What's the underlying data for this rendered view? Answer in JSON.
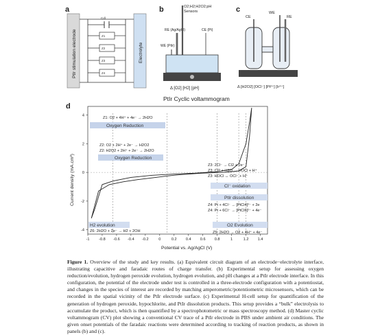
{
  "figure": {
    "panel_a": {
      "letter": "a",
      "electrode_label": "PtIr stimulation electrode",
      "electrolyte_label": "Electrolyte",
      "cdl_label": "Cdl",
      "z_labels": [
        "Z1",
        "Z2",
        "Z3",
        "Z4"
      ]
    },
    "panel_b": {
      "letter": "b",
      "sensors_label": "O2;H2;H2O2;pH",
      "sensors_label_2": "Sensors",
      "re_label": "RE (Ag/AgCl)",
      "ce_label": "CE (Pt)",
      "we_label": "WE (PtIr)",
      "bottom_label": "Δ [O2] [H2] [pH]"
    },
    "panel_c": {
      "letter": "c",
      "ce_label": "CE",
      "we_label": "WE",
      "re_label": "RE",
      "bottom_label": "Δ [H2O2] [OCl⁻] [Pt²⁺] [Ir⁴⁺]"
    },
    "panel_d": {
      "letter": "d",
      "title": "PtIr Cyclic voltammogram",
      "regions": {
        "oxygen_reduction_1": "Oxygen Reduction",
        "oxygen_reduction_2": "Oxygen Reduction",
        "cl_oxidation": "Cl⁻ oxidation",
        "ptir_dissolution": "PtIr dissolution",
        "o2_evolution": "O2 Evolution",
        "h2_evolution": "H2 evolution"
      },
      "reactions": {
        "z1": "Z1: O2 + 4H⁺ + 4e⁻ → 2H2O",
        "z2a": "Z2: O2 + 2H⁺ + 2e⁻ → H2O2",
        "z2b": "Z2: H2O2 + 2H⁺ + 2e⁻ → 2H2O",
        "z3a": "Z3: 2Cl⁻ → Cl2 + 2e⁻",
        "z3b": "Z3: Cl2 + H2O → HOCl + H⁺",
        "z3c": "Z3: HOCl ↔ OCl⁻ + H⁺",
        "z4a": "Z4: Pt + 4Cl⁻ → [PtCl4]²⁻ + 2e",
        "z4b": "Z4: Pt + 6Cl⁻ → [PtCl6]²⁻ + 4e⁻",
        "z5": "Z5: 2H2O → O2 + 4H⁺ + 4e⁻",
        "z6": "Z6: 2H2O + 2e⁻ → H2 + 2OH"
      }
    }
  },
  "chart_data": {
    "type": "line",
    "title": "PtIr Cyclic voltammogram",
    "xlabel": "Potential vs. Ag/AgCl (V)",
    "ylabel": "Current density (mA.cm²)",
    "xlim": [
      -1,
      1.5
    ],
    "ylim": [
      -4.3,
      4.6
    ],
    "x_ticks": [
      "-1",
      "-0.8",
      "-0.6",
      "-0.4",
      "-0.2",
      "0",
      "0.2",
      "0.4",
      "0.6",
      "0.8",
      "1",
      "1.2",
      "1.4"
    ],
    "y_ticks": [
      "4",
      "2",
      "0",
      "-2",
      "-4"
    ],
    "x_tick_values": [
      -1,
      -0.8,
      -0.6,
      -0.4,
      -0.2,
      0,
      0.2,
      0.4,
      0.6,
      0.8,
      1,
      1.2,
      1.4
    ],
    "y_tick_values": [
      4,
      2,
      0,
      -2,
      -4
    ],
    "onset_lines_x": [
      -0.65,
      0.1,
      0.8,
      1.1,
      1.2
    ],
    "series": [
      {
        "values_forward": [
          [
            -0.95,
            -3.2
          ],
          [
            -0.9,
            -2.5
          ],
          [
            -0.8,
            -0.85
          ],
          [
            -0.65,
            -0.6
          ],
          [
            -0.4,
            -0.35
          ],
          [
            -0.1,
            -0.2
          ],
          [
            0.2,
            -0.12
          ],
          [
            0.5,
            -0.05
          ],
          [
            0.8,
            0.05
          ],
          [
            1.0,
            0.2
          ],
          [
            1.1,
            0.6
          ],
          [
            1.2,
            2.0
          ],
          [
            1.25,
            3.5
          ],
          [
            1.28,
            4.5
          ]
        ],
        "values_reverse": [
          [
            1.28,
            4.5
          ],
          [
            1.25,
            2.5
          ],
          [
            1.2,
            0.4
          ],
          [
            1.1,
            0.1
          ],
          [
            0.9,
            0.0
          ],
          [
            0.6,
            -0.05
          ],
          [
            0.3,
            -0.15
          ],
          [
            0.1,
            -0.25
          ],
          [
            -0.1,
            -0.38
          ],
          [
            -0.3,
            -0.5
          ],
          [
            -0.5,
            -0.65
          ],
          [
            -0.7,
            -0.85
          ],
          [
            -0.85,
            -1.3
          ],
          [
            -0.95,
            -3.2
          ]
        ]
      }
    ]
  },
  "caption": {
    "label": "Figure 1.",
    "text": "Overview of the study and key results. (a) Equivalent circuit diagram of an electrode−electrolyte interface, illustrating capacitive and faradaic routes of charge transfer. (b) Experimental setup for assessing oxygen reduction/evolution, hydrogen peroxide evolution, hydrogen evolution, and pH changes at a PtIr electrode interface. In this configuration, the potential of the electrode under test is controlled in a three-electrode configuration with a potentiostat, and changes in the species of interest are recorded by matching amperometric/potentiometric microsensors, which can be recorded in the spatial vicinity of the PtIr electrode surface. (c) Experimental H-cell setup for quantification of the generation of hydrogen peroxide, hypochlorite, and PtIr dissolution products. This setup provides a “bulk” electrolysis to accumulate the product, which is then quantified by a spectrophotometric or mass spectroscopy method. (d) Master cyclic voltammogram (CV) plot showing a conventional CV trace of a PtIr electrode in PBS under ambient air conditions. The given onset potentials of the faradaic reactions were determined according to tracking of reaction products, as shown in panels (b) and (c)."
  }
}
